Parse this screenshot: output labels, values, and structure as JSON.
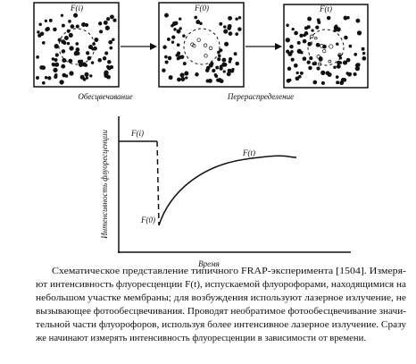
{
  "panels": [
    {
      "label": "F(i)"
    },
    {
      "label": "F(0)"
    },
    {
      "label": "F(t)"
    }
  ],
  "arrows": [
    {
      "label": "Обесцвечивание"
    },
    {
      "label": "Перераспределение"
    }
  ],
  "graph": {
    "y_label": "Интенсивность флуоресценции",
    "x_label": "Время",
    "labels": [
      "F(i)",
      "F(0)",
      "F(t)"
    ]
  },
  "caption": {
    "lines": [
      "Схематическое представление типичного FRAP-эксперимента [1504]. Измеря-",
      "ют интенсивность флуоресценции F(t), испускаемой флуорофорами, находящимися на",
      "небольшом участке мембраны; для возбуждения используют лазерное излучение, не",
      "вызывающее фотообесцвечивания. Проводят необратимое фотообесцвечивание значи-",
      "тельной части флуорофоров, используя более интенсивное лазерное излучение. Сразу",
      "же начинают измерять интенсивность флуоресценции в зависимости от времени."
    ]
  }
}
